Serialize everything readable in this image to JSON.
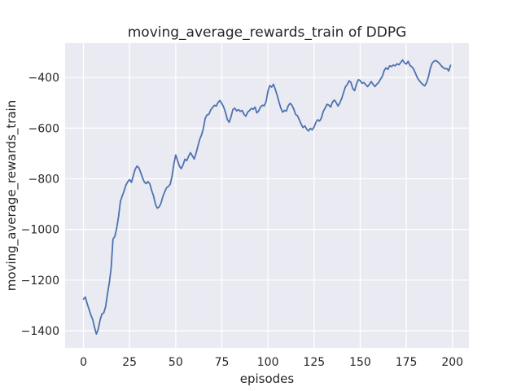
{
  "chart_data": {
    "type": "line",
    "title": "moving_average_rewards_train of DDPG",
    "xlabel": "episodes",
    "ylabel": "moving_average_rewards_train",
    "x_start": 0,
    "x_step": 1,
    "xlim": [
      -9.95,
      208.95
    ],
    "ylim": [
      -1468,
      -264
    ],
    "grid": true,
    "legend_position": "none",
    "xticks": {
      "values": [
        0,
        25,
        50,
        75,
        100,
        125,
        150,
        175,
        200
      ],
      "labels": [
        "0",
        "25",
        "50",
        "75",
        "100",
        "125",
        "150",
        "175",
        "200"
      ]
    },
    "yticks": {
      "values": [
        -400,
        -600,
        -800,
        -1000,
        -1200,
        -1400
      ],
      "labels": [
        "−400",
        "−600",
        "−800",
        "−1000",
        "−1200",
        "−1400"
      ]
    },
    "colors": {
      "line": "#4c72b0",
      "plot_bg": "#eaeaf2",
      "grid": "#ffffff",
      "text": "#262626",
      "figure_bg": "#ffffff"
    },
    "series": [
      {
        "name": "DDPG moving_average_rewards_train",
        "values": [
          -1275,
          -1267,
          -1293,
          -1315,
          -1338,
          -1355,
          -1387,
          -1413,
          -1394,
          -1358,
          -1334,
          -1329,
          -1305,
          -1255,
          -1211,
          -1152,
          -1038,
          -1028,
          -995,
          -950,
          -890,
          -868,
          -848,
          -825,
          -812,
          -803,
          -814,
          -788,
          -763,
          -750,
          -756,
          -775,
          -796,
          -813,
          -819,
          -811,
          -821,
          -847,
          -868,
          -900,
          -916,
          -911,
          -897,
          -871,
          -852,
          -836,
          -830,
          -822,
          -790,
          -742,
          -706,
          -728,
          -750,
          -760,
          -745,
          -723,
          -728,
          -711,
          -697,
          -709,
          -722,
          -700,
          -672,
          -645,
          -627,
          -601,
          -561,
          -548,
          -545,
          -528,
          -518,
          -510,
          -513,
          -498,
          -491,
          -503,
          -517,
          -538,
          -566,
          -577,
          -555,
          -527,
          -521,
          -532,
          -527,
          -534,
          -530,
          -545,
          -553,
          -537,
          -531,
          -522,
          -526,
          -517,
          -540,
          -532,
          -516,
          -510,
          -512,
          -495,
          -455,
          -432,
          -438,
          -427,
          -447,
          -470,
          -497,
          -521,
          -537,
          -530,
          -533,
          -512,
          -502,
          -509,
          -525,
          -546,
          -551,
          -567,
          -584,
          -598,
          -591,
          -604,
          -611,
          -601,
          -607,
          -596,
          -577,
          -567,
          -572,
          -560,
          -534,
          -521,
          -506,
          -509,
          -517,
          -497,
          -489,
          -499,
          -513,
          -500,
          -483,
          -460,
          -437,
          -428,
          -413,
          -420,
          -444,
          -452,
          -426,
          -409,
          -412,
          -423,
          -420,
          -428,
          -436,
          -427,
          -416,
          -427,
          -436,
          -427,
          -420,
          -407,
          -396,
          -373,
          -362,
          -368,
          -354,
          -357,
          -351,
          -354,
          -346,
          -350,
          -341,
          -331,
          -342,
          -347,
          -336,
          -352,
          -358,
          -367,
          -384,
          -401,
          -412,
          -421,
          -428,
          -433,
          -421,
          -398,
          -365,
          -344,
          -336,
          -333,
          -338,
          -345,
          -354,
          -361,
          -366,
          -365,
          -374,
          -352
        ]
      }
    ]
  }
}
